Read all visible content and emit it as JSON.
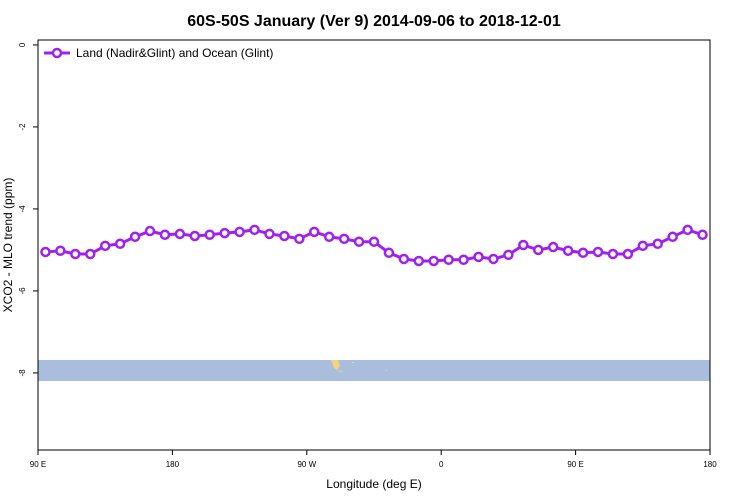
{
  "chart_data": {
    "type": "line",
    "title": "60S-50S January (Ver 9)   2014-09-06 to 2018-12-01",
    "x_label": "Longitude (deg E)",
    "y_label": "XCO2 - MLO trend (ppm)",
    "x": [
      95,
      105,
      115,
      125,
      135,
      145,
      155,
      165,
      175,
      185,
      195,
      205,
      215,
      225,
      235,
      245,
      255,
      265,
      275,
      285,
      295,
      305,
      315,
      325,
      335,
      345,
      355,
      365,
      375,
      385,
      395,
      405,
      415,
      425,
      435,
      445,
      455,
      465,
      475,
      485,
      495,
      505,
      515,
      525,
      535
    ],
    "series": [
      {
        "name": "Land (Nadir&Glint) and Ocean (Glint)",
        "color": "#a020f0",
        "values": [
          -5.05,
          -5.02,
          -5.1,
          -5.1,
          -4.9,
          -4.85,
          -4.68,
          -4.54,
          -4.63,
          -4.61,
          -4.66,
          -4.63,
          -4.59,
          -4.56,
          -4.51,
          -4.61,
          -4.66,
          -4.73,
          -4.56,
          -4.68,
          -4.73,
          -4.8,
          -4.8,
          -5.07,
          -5.22,
          -5.27,
          -5.27,
          -5.24,
          -5.24,
          -5.17,
          -5.22,
          -5.12,
          -4.88,
          -5.0,
          -4.93,
          -5.02,
          -5.07,
          -5.05,
          -5.1,
          -5.1,
          -4.9,
          -4.85,
          -4.68,
          -4.51,
          -4.63
        ]
      }
    ],
    "xlim": [
      90,
      540
    ],
    "xticks": [
      {
        "value": 90,
        "label": "90 E"
      },
      180,
      {
        "value": 270,
        "label": "90 W"
      },
      {
        "value": 360,
        "label": "0"
      },
      {
        "value": 450,
        "label": "90 E"
      },
      {
        "value": 540,
        "label": "180"
      }
    ],
    "ylim": [
      -9.88,
      0.12
    ],
    "yticks": [
      0,
      -2,
      -4,
      -6,
      -8
    ],
    "legend": "top-left"
  }
}
